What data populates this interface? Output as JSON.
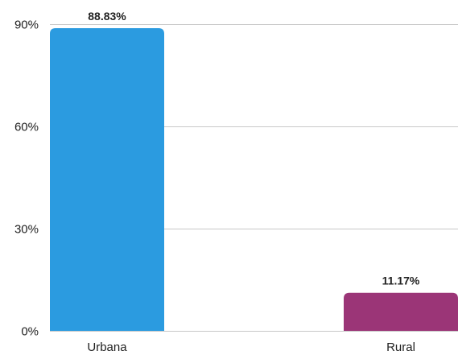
{
  "chart_data": {
    "type": "bar",
    "title": "",
    "xlabel": "",
    "ylabel": "",
    "ylim": [
      0,
      90
    ],
    "yticks": [
      0,
      30,
      60,
      90
    ],
    "ytick_labels": [
      "0%",
      "30%",
      "60%",
      "90%"
    ],
    "grid": true,
    "categories": [
      "Urbana",
      "Rural"
    ],
    "values": [
      88.83,
      11.17
    ],
    "data_labels": [
      "88.83%",
      "11.17%"
    ],
    "colors": [
      "#2b9be0",
      "#9b3577"
    ]
  }
}
